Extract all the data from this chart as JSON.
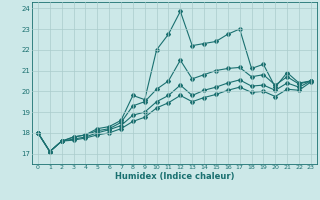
{
  "xlabel": "Humidex (Indice chaleur)",
  "bg_color": "#cce8e8",
  "grid_color": "#aacccc",
  "line_color": "#1a7070",
  "xlim": [
    -0.5,
    23.5
  ],
  "ylim": [
    16.5,
    24.3
  ],
  "xticks": [
    0,
    1,
    2,
    3,
    4,
    5,
    6,
    7,
    8,
    9,
    10,
    11,
    12,
    13,
    14,
    15,
    16,
    17,
    18,
    19,
    20,
    21,
    22,
    23
  ],
  "yticks": [
    17,
    18,
    19,
    20,
    21,
    22,
    23,
    24
  ],
  "line1": [
    18.0,
    17.1,
    17.6,
    17.8,
    17.9,
    18.2,
    18.3,
    18.6,
    19.8,
    19.6,
    22.0,
    22.75,
    23.85,
    22.2,
    22.3,
    22.4,
    22.75,
    23.0,
    21.1,
    21.3,
    20.2,
    20.9,
    20.4,
    20.5
  ],
  "line2": [
    18.0,
    17.1,
    17.6,
    17.8,
    17.9,
    18.1,
    18.2,
    18.5,
    19.3,
    19.5,
    20.1,
    20.5,
    21.5,
    20.6,
    20.8,
    21.0,
    21.1,
    21.15,
    20.7,
    20.8,
    20.3,
    20.7,
    20.35,
    20.5
  ],
  "line3": [
    18.0,
    17.1,
    17.6,
    17.7,
    17.8,
    18.0,
    18.15,
    18.35,
    18.85,
    19.0,
    19.5,
    19.8,
    20.3,
    19.8,
    20.05,
    20.2,
    20.4,
    20.55,
    20.25,
    20.3,
    20.05,
    20.4,
    20.2,
    20.5
  ],
  "line4": [
    18.0,
    17.1,
    17.6,
    17.65,
    17.75,
    17.9,
    18.0,
    18.2,
    18.55,
    18.75,
    19.2,
    19.45,
    19.8,
    19.5,
    19.7,
    19.85,
    20.05,
    20.2,
    19.95,
    20.0,
    19.75,
    20.1,
    20.05,
    20.45
  ]
}
